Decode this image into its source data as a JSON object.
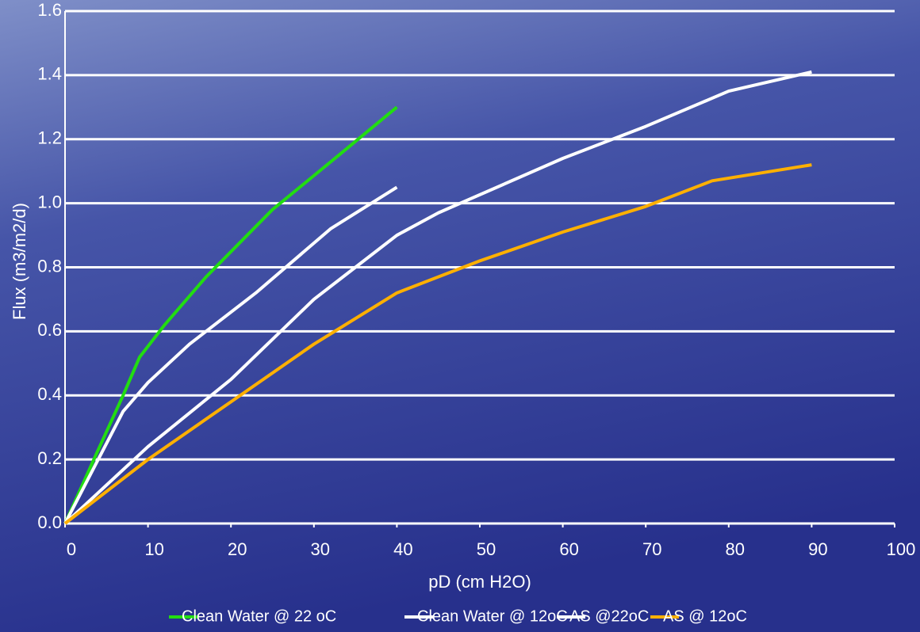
{
  "chart_data": {
    "type": "line",
    "xlabel": "pD (cm H2O)",
    "ylabel": "Flux (m3/m2/d)",
    "xlim": [
      0,
      100
    ],
    "xticks": [
      0,
      10,
      20,
      30,
      40,
      50,
      60,
      70,
      80,
      90,
      100
    ],
    "ylim": [
      0,
      1.6
    ],
    "yticks": [
      {
        "value": 0,
        "label": "0.0"
      },
      0.2,
      0.4,
      0.6,
      0.8,
      {
        "value": 1,
        "label": "1.0"
      },
      1.2,
      1.4,
      1.6
    ],
    "grid": true,
    "legend": "bottom",
    "series": [
      {
        "name": "Clean Water @ 22 oC",
        "color": "#22dd11",
        "x": [
          0,
          4,
          7,
          9,
          12,
          17,
          25,
          33,
          40
        ],
        "values": [
          0,
          0.23,
          0.4,
          0.52,
          0.62,
          0.77,
          0.98,
          1.15,
          1.3
        ]
      },
      {
        "name": "Clean Water @ 12oC",
        "color": "#ffffff",
        "x": [
          0,
          5,
          7,
          10,
          15,
          23,
          32,
          40
        ],
        "values": [
          0,
          0.25,
          0.35,
          0.44,
          0.56,
          0.72,
          0.92,
          1.05
        ]
      },
      {
        "name": "AS @22oC",
        "color": "#ffffff",
        "x": [
          0,
          10,
          20,
          30,
          35,
          40,
          45,
          60,
          70,
          80,
          90
        ],
        "values": [
          0,
          0.24,
          0.45,
          0.7,
          0.8,
          0.9,
          0.97,
          1.14,
          1.24,
          1.35,
          1.41
        ]
      },
      {
        "name": "AS @ 12oC",
        "color": "#ffb000",
        "x": [
          0,
          10,
          20,
          30,
          40,
          50,
          60,
          70,
          78,
          90
        ],
        "values": [
          0,
          0.2,
          0.38,
          0.56,
          0.72,
          0.82,
          0.91,
          0.99,
          1.07,
          1.12
        ]
      }
    ]
  }
}
